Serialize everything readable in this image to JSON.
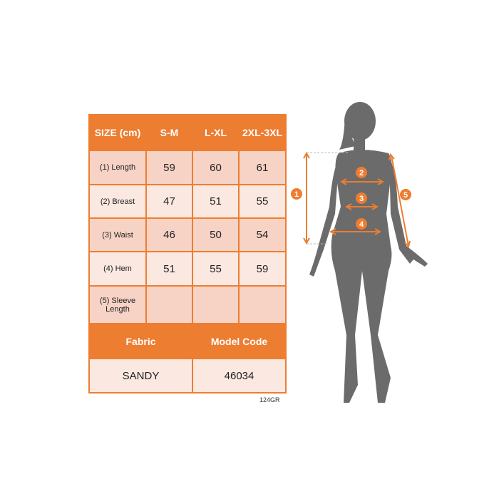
{
  "table": {
    "header": [
      "SIZE (cm)",
      "S-M",
      "L-XL",
      "2XL-3XL"
    ],
    "rows": [
      {
        "label": "(1) Length",
        "values": [
          "59",
          "60",
          "61"
        ]
      },
      {
        "label": "(2) Breast",
        "values": [
          "47",
          "51",
          "55"
        ]
      },
      {
        "label": "(3) Waist",
        "values": [
          "46",
          "50",
          "54"
        ]
      },
      {
        "label": "(4) Hem",
        "values": [
          "51",
          "55",
          "59"
        ]
      },
      {
        "label": "(5) Sleeve Length",
        "values": [
          "",
          "",
          ""
        ]
      }
    ],
    "info_header": [
      "Fabric",
      "Model Code"
    ],
    "info_values": [
      "SANDY",
      "46034"
    ]
  },
  "product_code": "124GR",
  "figure": {
    "markers": [
      "1",
      "2",
      "3",
      "4",
      "5"
    ]
  },
  "colors": {
    "accent": "#ed7d31",
    "silhouette": "#6b6b6b",
    "row_dark": "#f7d3c5",
    "row_light": "#fbe8e1"
  }
}
